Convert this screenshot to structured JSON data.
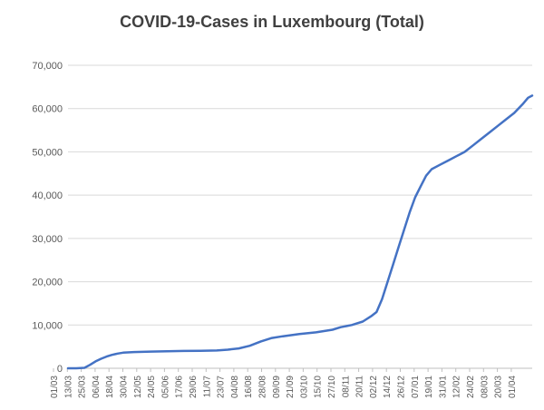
{
  "chart_data": {
    "type": "line",
    "title": "COVID-19-Cases in Luxembourg (Total)",
    "xlabel": "",
    "ylabel": "",
    "ylim": [
      0,
      70000
    ],
    "y_ticks": [
      0,
      10000,
      20000,
      30000,
      40000,
      50000,
      60000,
      70000
    ],
    "y_tick_labels": [
      "0",
      "10,000",
      "20,000",
      "30,000",
      "40,000",
      "50,000",
      "60,000",
      "70,000"
    ],
    "x_tick_labels": [
      "01/03",
      "13/03",
      "25/03",
      "06/04",
      "18/04",
      "30/04",
      "12/05",
      "24/05",
      "05/06",
      "17/06",
      "29/06",
      "11/07",
      "23/07",
      "04/08",
      "16/08",
      "28/08",
      "09/09",
      "21/09",
      "03/10",
      "15/10",
      "27/10",
      "08/11",
      "20/11",
      "02/12",
      "14/12",
      "26/12",
      "07/01",
      "19/01",
      "31/01",
      "12/02",
      "24/02",
      "08/03",
      "20/03",
      "01/04"
    ],
    "grid": "horizontal",
    "legend": "none",
    "series_color": "#4472C4",
    "series": [
      {
        "points": [
          [
            0,
            0
          ],
          [
            6,
            0
          ],
          [
            12,
            100
          ],
          [
            16,
            800
          ],
          [
            20,
            1600
          ],
          [
            24,
            2200
          ],
          [
            28,
            2700
          ],
          [
            32,
            3100
          ],
          [
            36,
            3400
          ],
          [
            40,
            3600
          ],
          [
            48,
            3750
          ],
          [
            60,
            3850
          ],
          [
            72,
            3950
          ],
          [
            84,
            4000
          ],
          [
            96,
            4050
          ],
          [
            108,
            4100
          ],
          [
            116,
            4300
          ],
          [
            124,
            4600
          ],
          [
            132,
            5200
          ],
          [
            140,
            6200
          ],
          [
            148,
            7000
          ],
          [
            156,
            7400
          ],
          [
            168,
            7900
          ],
          [
            180,
            8300
          ],
          [
            192,
            8900
          ],
          [
            198,
            9500
          ],
          [
            206,
            10000
          ],
          [
            214,
            10800
          ],
          [
            220,
            12000
          ],
          [
            224,
            13000
          ],
          [
            228,
            16000
          ],
          [
            232,
            20000
          ],
          [
            236,
            24000
          ],
          [
            240,
            28000
          ],
          [
            244,
            32000
          ],
          [
            248,
            36000
          ],
          [
            252,
            39500
          ],
          [
            256,
            42000
          ],
          [
            260,
            44500
          ],
          [
            264,
            46000
          ],
          [
            270,
            47000
          ],
          [
            276,
            48000
          ],
          [
            282,
            49000
          ],
          [
            288,
            50000
          ],
          [
            294,
            51500
          ],
          [
            300,
            53000
          ],
          [
            306,
            54500
          ],
          [
            312,
            56000
          ],
          [
            318,
            57500
          ],
          [
            324,
            59000
          ],
          [
            330,
            61000
          ],
          [
            334,
            62500
          ],
          [
            337,
            63000
          ]
        ]
      }
    ]
  }
}
